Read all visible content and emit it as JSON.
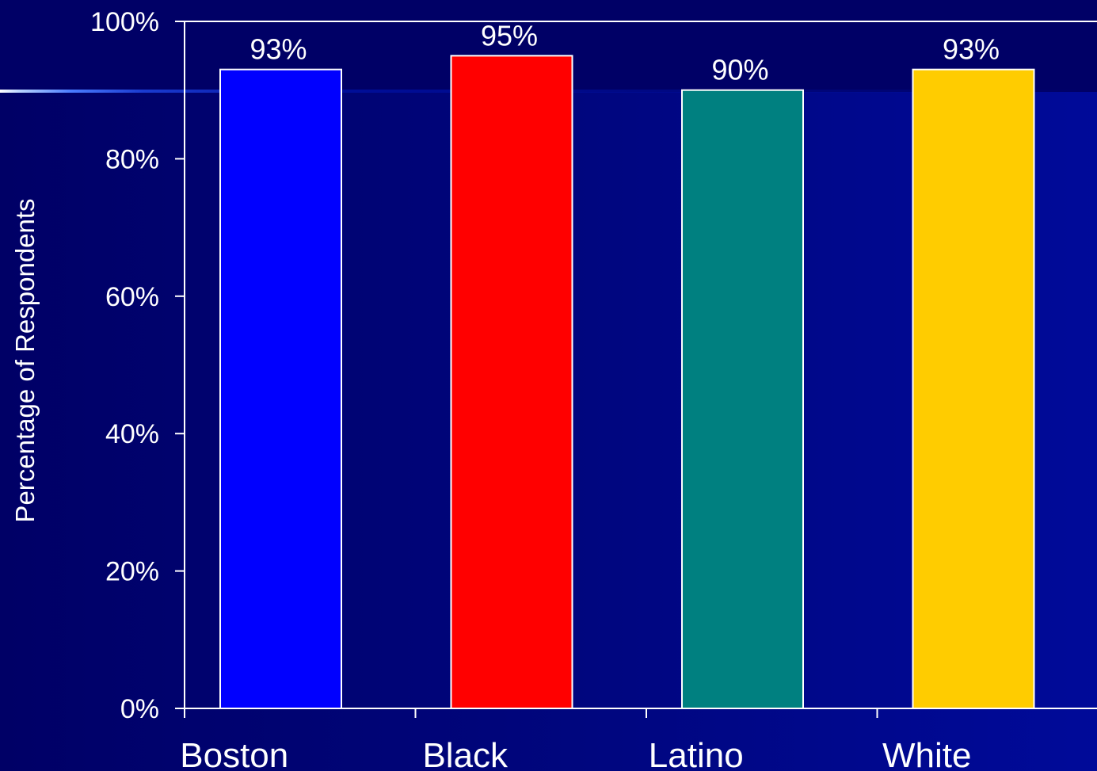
{
  "colors": {
    "background": "#000066",
    "axis": "#ffffff",
    "text": "#ffffff"
  },
  "chart_data": {
    "type": "bar",
    "ylabel": "Percentage of Respondents",
    "xlabel": "",
    "categories": [
      "Boston",
      "Black",
      "Latino",
      "White"
    ],
    "values": [
      93,
      95,
      90,
      93
    ],
    "data_labels": [
      "93%",
      "95%",
      "90%",
      "93%"
    ],
    "bar_colors": [
      "#0000ff",
      "#ff0000",
      "#008080",
      "#ffcc00"
    ],
    "ylim": [
      0,
      100
    ],
    "y_ticks": [
      0,
      20,
      40,
      60,
      80,
      100
    ],
    "y_tick_labels": [
      "0%",
      "20%",
      "40%",
      "60%",
      "80%",
      "100%"
    ],
    "grid": false,
    "legend": "none"
  }
}
